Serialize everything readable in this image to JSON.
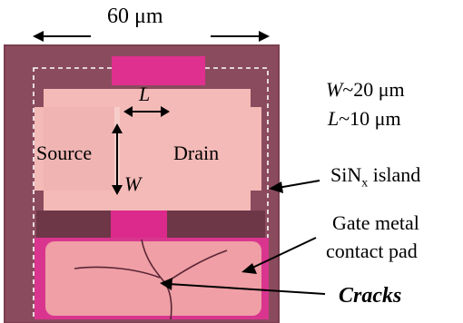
{
  "labels": {
    "width_dimension": "60 μm",
    "w_value": "~20 μm",
    "w_symbol": "W",
    "l_value": "~10 μm",
    "l_symbol": "L",
    "l_arrow_symbol": "L",
    "w_arrow_symbol": "W",
    "source": "Source",
    "drain": "Drain",
    "sinx_main": "SiN",
    "sinx_sub": "x",
    "sinx_suffix": " island",
    "gate_line1": "Gate metal",
    "gate_line2": "contact pad",
    "cracks": "Cracks"
  },
  "colors": {
    "substrate": "#8a4a5c",
    "electrode": "#f2b6b4",
    "gate_pad": "#ef9fa6",
    "gate_metal": "#e0308f",
    "channel_dark": "#6b3546"
  }
}
